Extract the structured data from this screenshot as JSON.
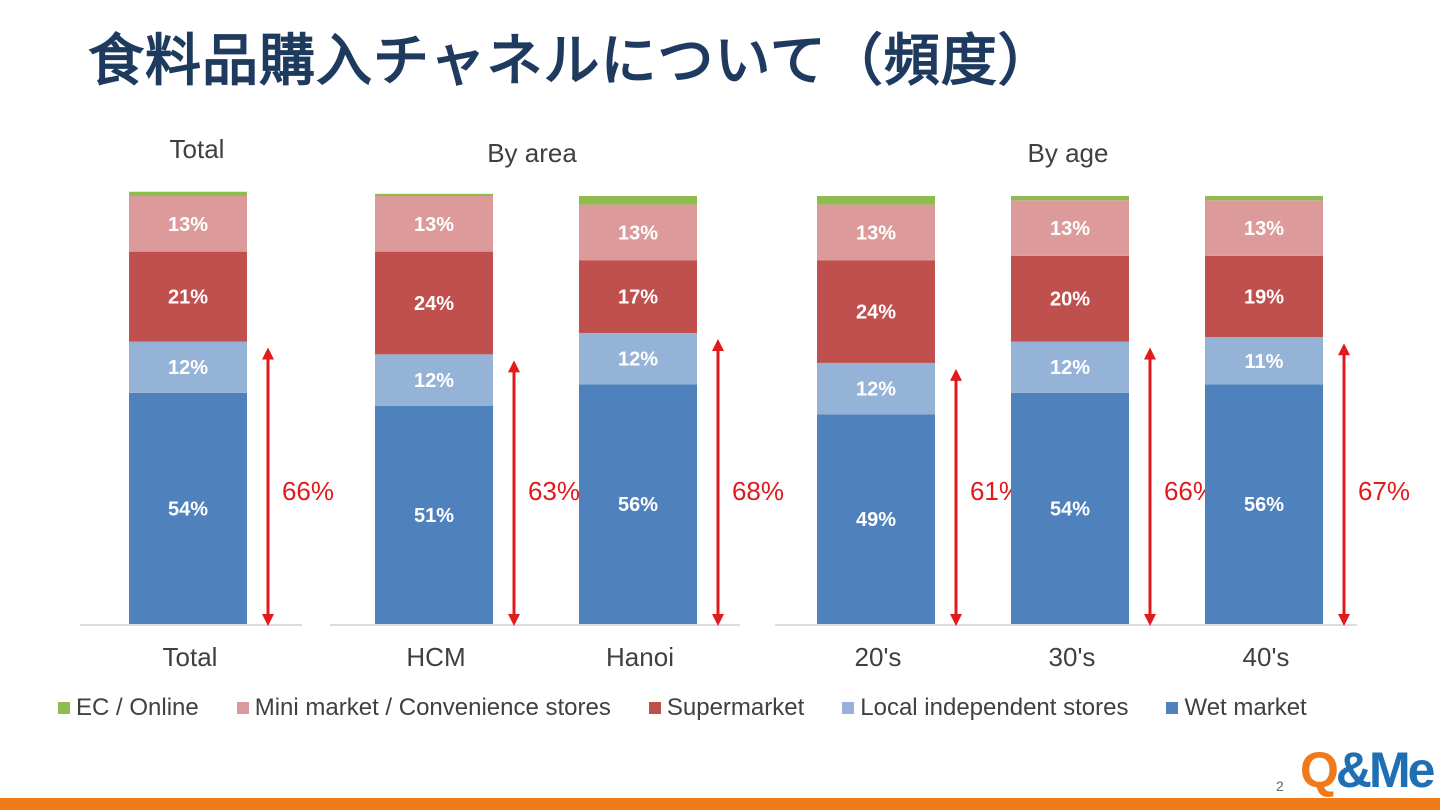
{
  "title": "食料品購入チャネルについて（頻度）",
  "page_number": "2",
  "logo": {
    "q": "Q",
    "rest": "&Me"
  },
  "group_labels": [
    "Total",
    "By area",
    "By age"
  ],
  "colors": {
    "ec": "#8fbc4f",
    "mini": "#dc9a9a",
    "super": "#c0504d",
    "local": "#95b3d7",
    "wet": "#4f81bd",
    "arrow": "#e31a1c",
    "footer": "#f07a1a",
    "title": "#1f3a5f"
  },
  "chart_data": {
    "type": "bar",
    "stacked": true,
    "categories": [
      "Total",
      "HCM",
      "Hanoi",
      "20's",
      "30's",
      "40's"
    ],
    "series": [
      {
        "name": "Wet market",
        "values": [
          54,
          51,
          56,
          49,
          54,
          56
        ]
      },
      {
        "name": "Local independent stores",
        "values": [
          12,
          12,
          12,
          12,
          12,
          11
        ]
      },
      {
        "name": "Supermarket",
        "values": [
          21,
          24,
          17,
          24,
          20,
          19
        ]
      },
      {
        "name": "Mini market / Convenience stores",
        "values": [
          13,
          13,
          13,
          13,
          13,
          13
        ]
      },
      {
        "name": "EC / Online",
        "values": [
          1,
          0.5,
          2,
          2,
          1,
          1
        ]
      }
    ],
    "data_labels": [
      [
        "54%",
        "51%",
        "56%",
        "49%",
        "54%",
        "56%"
      ],
      [
        "12%",
        "12%",
        "12%",
        "12%",
        "12%",
        "11%"
      ],
      [
        "21%",
        "24%",
        "17%",
        "24%",
        "20%",
        "19%"
      ],
      [
        "13%",
        "13%",
        "13%",
        "13%",
        "13%",
        "13%"
      ]
    ],
    "annotations": [
      "66%",
      "63%",
      "68%",
      "61%",
      "66%",
      "67%"
    ],
    "ylim": [
      0,
      100
    ],
    "legend": [
      "EC / Online",
      "Mini market / Convenience stores",
      "Supermarket",
      "Local independent stores",
      "Wet market"
    ],
    "legend_position": "bottom"
  }
}
